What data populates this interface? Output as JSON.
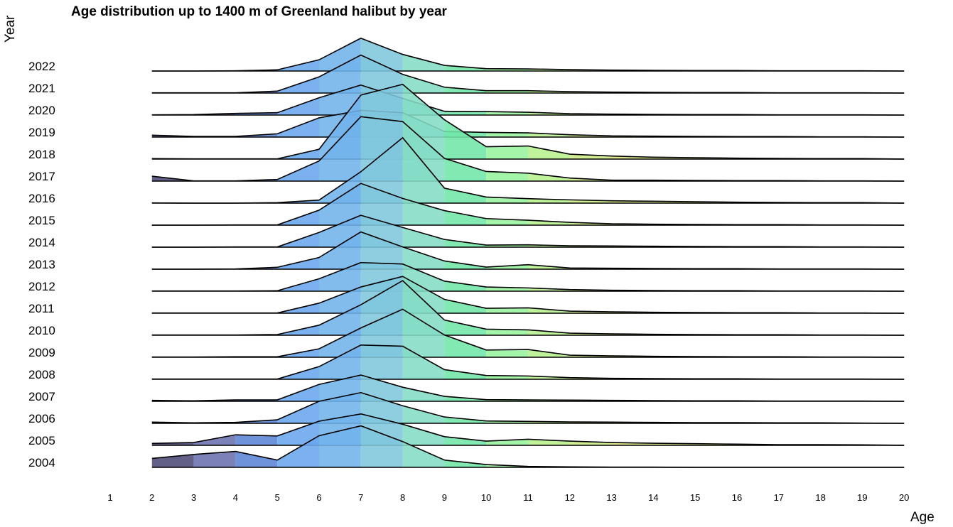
{
  "chart_data": {
    "type": "ridgeline",
    "title": "Age distribution up to 1400 m of Greenland halibut by year",
    "xlabel": "Age",
    "ylabel": "Year",
    "x_ticks": [
      1,
      2,
      3,
      4,
      5,
      6,
      7,
      8,
      9,
      10,
      11,
      12,
      13,
      14,
      15,
      16,
      17,
      18,
      19,
      20
    ],
    "xlim": [
      1,
      20
    ],
    "ages": [
      2,
      3,
      4,
      5,
      6,
      7,
      8,
      9,
      10,
      11,
      12,
      13,
      14,
      15,
      16,
      17,
      18,
      19,
      20
    ],
    "fill_palette": "viridis-like by age (dark purple at age 2 to yellow-green at age 13+)",
    "grid": false,
    "series": [
      {
        "year": "2004",
        "values": [
          0.38,
          0.55,
          0.68,
          0.31,
          1.35,
          1.77,
          1.1,
          0.31,
          0.12,
          0.04,
          0.02,
          0.01,
          0.01,
          0,
          0,
          0,
          0,
          0,
          0
        ]
      },
      {
        "year": "2005",
        "values": [
          0.08,
          0.12,
          0.45,
          0.4,
          1.03,
          1.34,
          0.9,
          0.37,
          0.18,
          0.26,
          0.18,
          0.12,
          0.09,
          0.07,
          0.05,
          0.03,
          0.03,
          0.02,
          0
        ]
      },
      {
        "year": "2006",
        "values": [
          0.05,
          0.02,
          0.04,
          0.15,
          0.94,
          1.31,
          0.75,
          0.27,
          0.1,
          0.08,
          0.06,
          0.05,
          0.04,
          0.03,
          0.03,
          0.02,
          0.02,
          0.01,
          0
        ]
      },
      {
        "year": "2007",
        "values": [
          0.04,
          0.02,
          0.06,
          0.06,
          0.72,
          1.12,
          0.6,
          0.21,
          0.07,
          0.06,
          0.05,
          0.04,
          0.03,
          0.02,
          0.02,
          0.01,
          0.01,
          0.01,
          0
        ]
      },
      {
        "year": "2008",
        "values": [
          0.01,
          0.01,
          0.01,
          0.01,
          0.54,
          1.46,
          1.41,
          0.41,
          0.16,
          0.14,
          0.07,
          0.04,
          0.03,
          0.02,
          0.02,
          0.01,
          0.01,
          0.01,
          0
        ]
      },
      {
        "year": "2009",
        "values": [
          0.01,
          0.01,
          0.02,
          0.02,
          0.36,
          1.25,
          2.05,
          0.95,
          0.31,
          0.33,
          0.09,
          0.06,
          0.04,
          0.03,
          0.02,
          0.02,
          0.01,
          0.01,
          0
        ]
      },
      {
        "year": "2010",
        "values": [
          0.01,
          0.01,
          0.01,
          0.03,
          0.43,
          1.3,
          2.33,
          0.65,
          0.26,
          0.23,
          0.09,
          0.06,
          0.04,
          0.03,
          0.02,
          0.02,
          0.01,
          0.01,
          0
        ]
      },
      {
        "year": "2011",
        "values": [
          0.01,
          0.01,
          0.01,
          0.01,
          0.43,
          1.12,
          1.57,
          0.59,
          0.21,
          0.23,
          0.09,
          0.06,
          0.04,
          0.03,
          0.02,
          0.02,
          0.01,
          0.01,
          0
        ]
      },
      {
        "year": "2012",
        "values": [
          0.01,
          0.01,
          0.01,
          0.02,
          0.53,
          1.22,
          1.16,
          0.43,
          0.18,
          0.14,
          0.07,
          0.04,
          0.03,
          0.02,
          0.02,
          0.01,
          0.01,
          0.01,
          0
        ]
      },
      {
        "year": "2013",
        "values": [
          0,
          0,
          0.01,
          0.08,
          0.5,
          1.59,
          0.95,
          0.35,
          0.09,
          0.19,
          0.05,
          0.04,
          0.03,
          0.02,
          0.02,
          0.01,
          0.01,
          0.01,
          0
        ]
      },
      {
        "year": "2014",
        "values": [
          0,
          0,
          0.01,
          0.01,
          0.63,
          1.36,
          0.84,
          0.33,
          0.09,
          0.1,
          0.06,
          0.05,
          0.04,
          0.03,
          0.02,
          0.02,
          0.01,
          0.01,
          0
        ]
      },
      {
        "year": "2015",
        "values": [
          0,
          0,
          0.01,
          0.01,
          0.64,
          1.78,
          1.14,
          0.62,
          0.28,
          0.21,
          0.12,
          0.06,
          0.04,
          0.03,
          0.02,
          0.02,
          0.01,
          0.01,
          0
        ]
      },
      {
        "year": "2016",
        "values": [
          0.01,
          0,
          0,
          0.02,
          0.13,
          1.34,
          2.79,
          0.64,
          0.26,
          0.19,
          0.14,
          0.1,
          0.08,
          0.06,
          0.04,
          0.03,
          0.02,
          0.02,
          0
        ]
      },
      {
        "year": "2017",
        "values": [
          0.21,
          0.01,
          0.01,
          0.07,
          0.86,
          2.75,
          2.54,
          0.97,
          0.41,
          0.34,
          0.13,
          0.04,
          0.04,
          0.03,
          0.02,
          0.02,
          0.01,
          0.01,
          0
        ]
      },
      {
        "year": "2018",
        "values": [
          0.02,
          0.01,
          0.01,
          0.01,
          0.42,
          2.73,
          3.19,
          1.68,
          0.53,
          0.56,
          0.21,
          0.13,
          0.08,
          0.06,
          0.04,
          0.03,
          0.02,
          0.02,
          0
        ]
      },
      {
        "year": "2019",
        "values": [
          0.08,
          0.03,
          0.03,
          0.14,
          0.82,
          1.14,
          1.04,
          0.24,
          0.2,
          0.18,
          0.1,
          0.05,
          0.04,
          0.03,
          0.02,
          0.02,
          0.01,
          0.01,
          0
        ]
      },
      {
        "year": "2020",
        "values": [
          0.01,
          0.02,
          0.07,
          0.1,
          0.74,
          1.28,
          0.71,
          0.16,
          0.15,
          0.12,
          0.06,
          0.04,
          0.03,
          0.02,
          0.02,
          0.01,
          0.01,
          0.01,
          0
        ]
      },
      {
        "year": "2021",
        "values": [
          0.01,
          0.01,
          0.01,
          0.08,
          0.69,
          1.62,
          0.8,
          0.25,
          0.1,
          0.1,
          0.06,
          0.04,
          0.03,
          0.02,
          0.02,
          0.01,
          0.01,
          0.01,
          0
        ]
      },
      {
        "year": "2022",
        "values": [
          0,
          0,
          0.01,
          0.05,
          0.48,
          1.4,
          0.71,
          0.24,
          0.1,
          0.09,
          0.06,
          0.04,
          0.03,
          0.02,
          0.02,
          0.01,
          0.01,
          0.01,
          0
        ]
      }
    ]
  }
}
